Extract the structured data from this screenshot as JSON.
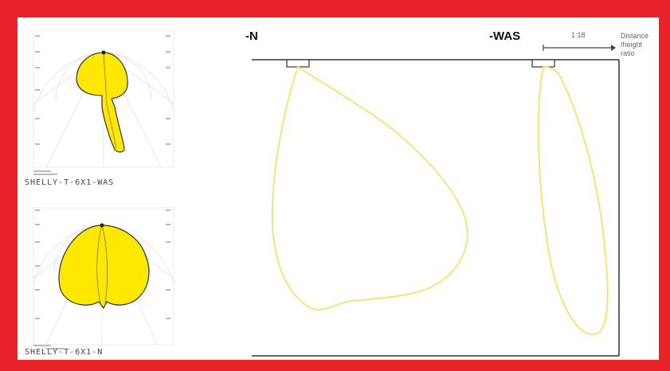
{
  "diagram": {
    "luminaire_n": {
      "label": "-N",
      "photometric_caption": "SHELLY-T-6X1-N",
      "fill_color": "#ffe800",
      "curve_color": "#f2e57a"
    },
    "luminaire_was": {
      "label": "-WAS",
      "photometric_caption": "SHELLY-T-6X1-WAS",
      "fill_color": "#ffe800",
      "curve_color": "#f2e57a"
    },
    "ratio_indicator": {
      "value": "1:18",
      "legend_lines": [
        "Distance",
        "/height",
        "ratio"
      ]
    },
    "colors": {
      "frame": "#e8232a",
      "background": "#ffffff",
      "lines": "#333333"
    }
  }
}
